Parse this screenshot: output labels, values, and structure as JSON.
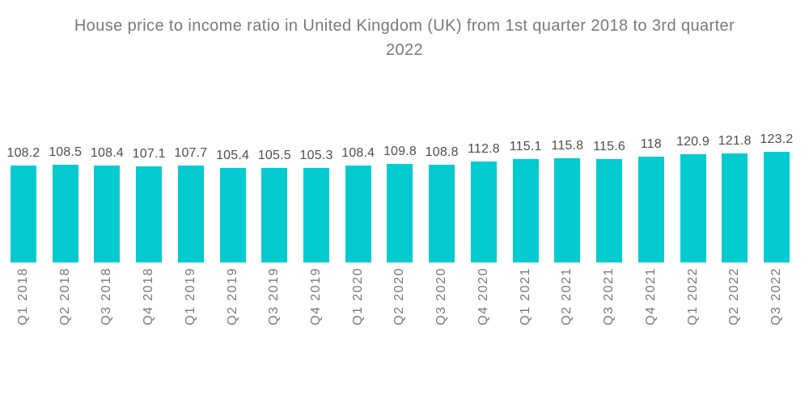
{
  "header": {
    "title_line1": "House price to income ratio in United Kingdom (UK) from 1st quarter 2018 to 3rd quarter",
    "title_line2": "2022"
  },
  "colors": {
    "background": "#ffffff",
    "bar": "#03cbd0",
    "title_text": "#77787b",
    "value_text": "#4c4d4f",
    "axis_text": "#76777a"
  },
  "chart_data": {
    "type": "bar",
    "title": "House price to income ratio in United Kingdom (UK) from 1st quarter 2018 to 3rd quarter 2022",
    "categories": [
      "Q1 2018",
      "Q2 2018",
      "Q3 2018",
      "Q4 2018",
      "Q1 2019",
      "Q2 2019",
      "Q3 2019",
      "Q4 2019",
      "Q1 2020",
      "Q2 2020",
      "Q3 2020",
      "Q4 2020",
      "Q1 2021",
      "Q2 2021",
      "Q3 2021",
      "Q4 2021",
      "Q1 2022",
      "Q2 2022",
      "Q3 2022"
    ],
    "values": [
      108.2,
      108.5,
      108.4,
      107.1,
      107.7,
      105.4,
      105.5,
      105.3,
      108.4,
      109.8,
      108.8,
      112.8,
      115.1,
      115.8,
      115.6,
      118,
      120.9,
      121.8,
      123.2
    ],
    "xlabel": "",
    "ylabel": "",
    "ylim": [
      0,
      123.2
    ],
    "grid": false,
    "legend": false,
    "value_labels_shown": true,
    "x_tick_rotation_degrees": 90
  }
}
